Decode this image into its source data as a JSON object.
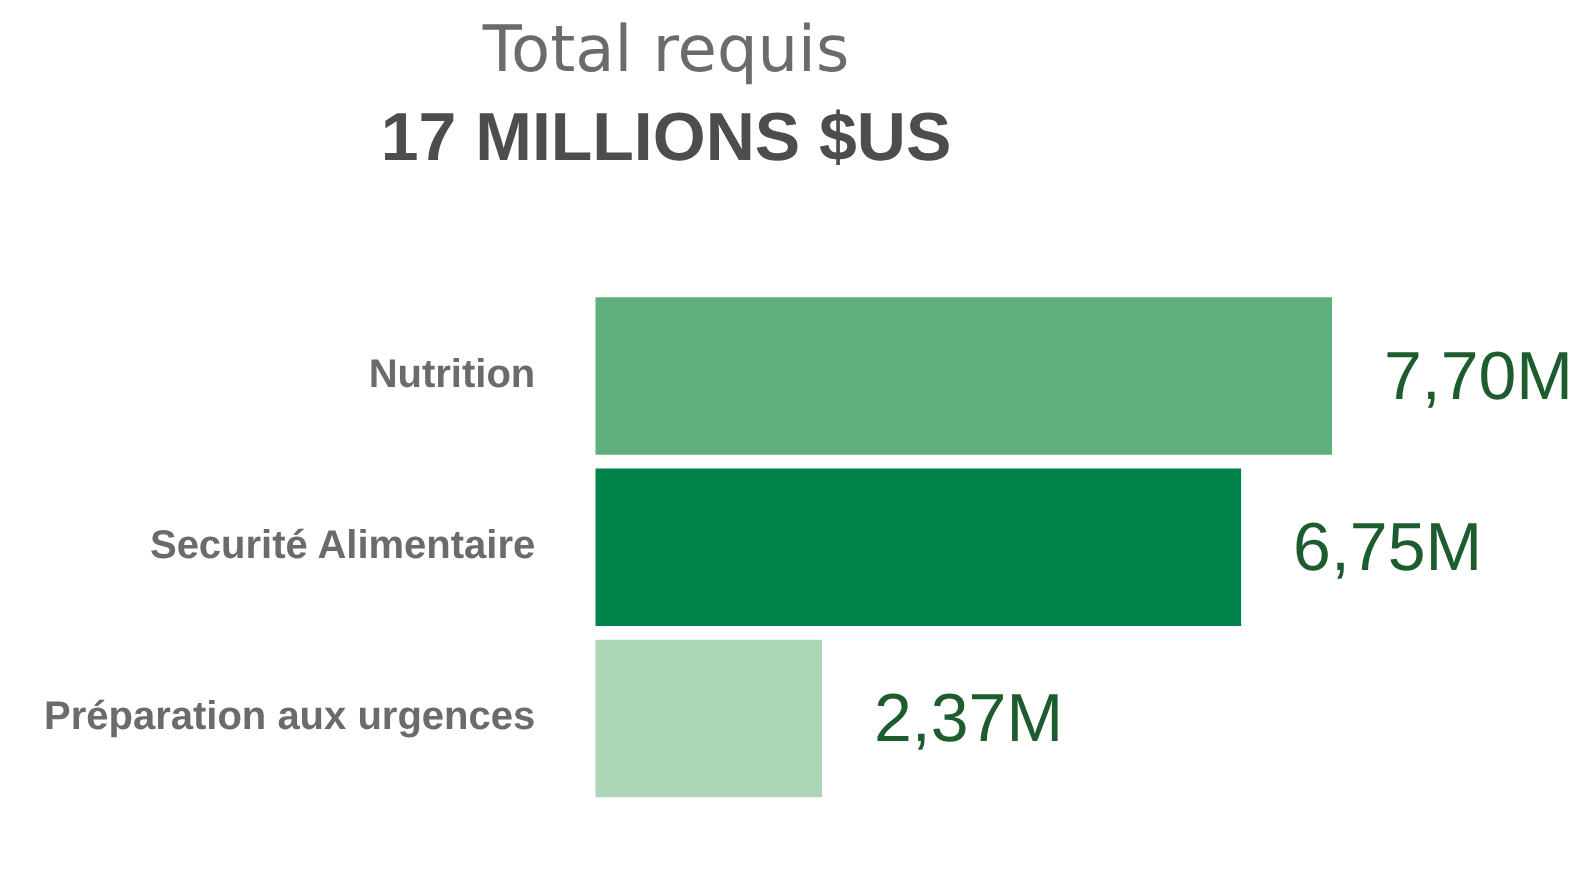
{
  "chart_data": {
    "type": "bar",
    "orientation": "horizontal",
    "title": "Total requis",
    "subtitle": "17 MILLIONS $US",
    "categories": [
      "Nutrition",
      "Securité Alimentaire",
      "Préparation aux urgences"
    ],
    "values": [
      7.7,
      6.75,
      2.37
    ],
    "colors": [
      "#5fae7e",
      "#00834a",
      "#acd5b6"
    ],
    "value_labels": [
      "7,70M",
      "6,75M",
      "2,37M"
    ],
    "legend": false
  }
}
